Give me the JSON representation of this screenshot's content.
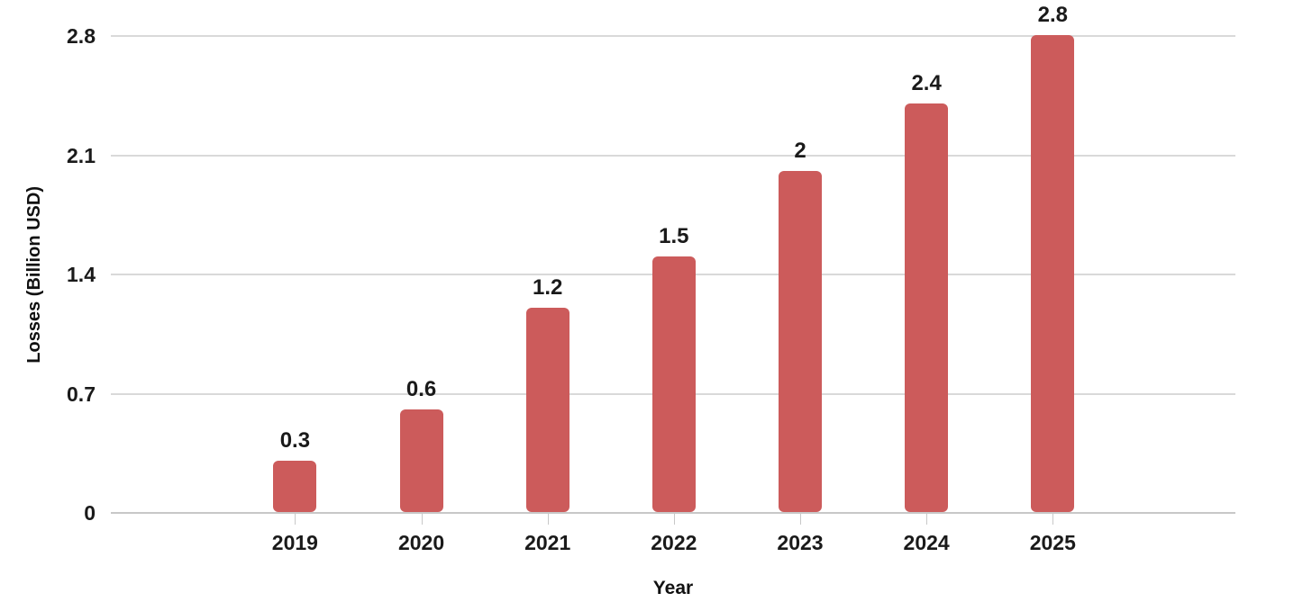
{
  "chart_data": {
    "type": "bar",
    "xlabel": "Year",
    "ylabel": "Losses (Billion USD)",
    "categories": [
      "2019",
      "2020",
      "2021",
      "2022",
      "2023",
      "2024",
      "2025"
    ],
    "values": [
      0.3,
      0.6,
      1.2,
      1.5,
      2,
      2.4,
      2.8
    ],
    "value_labels": [
      "0.3",
      "0.6",
      "1.2",
      "1.5",
      "2",
      "2.4",
      "2.8"
    ],
    "yticks": [
      0,
      0.7,
      1.4,
      2.1,
      2.8
    ],
    "ytick_labels": [
      "0",
      "0.7",
      "1.4",
      "2.1",
      "2.8"
    ],
    "ylim": [
      0,
      2.8
    ],
    "grid": "horizontal",
    "legend": "none",
    "bar_color": "#cc5b5b",
    "text_color": "#1a1a1a",
    "gridline_color": "#d9d9d9",
    "axis_line_color": "#c8c8c8"
  }
}
